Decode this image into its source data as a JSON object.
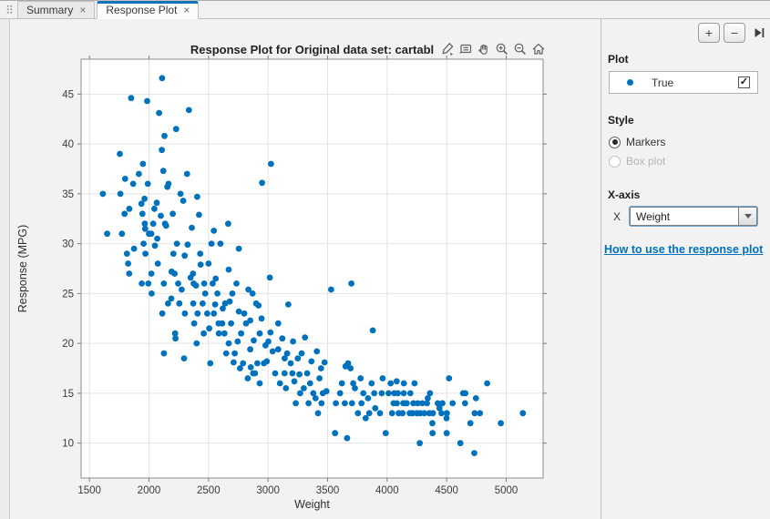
{
  "tabs": {
    "close_glyph": "×",
    "items": [
      {
        "label": "Summary",
        "active": false
      },
      {
        "label": "Response Plot",
        "active": true
      }
    ]
  },
  "toolbar": {
    "increase_label": "+",
    "decrease_label": "−",
    "collapse_label": "collapse-right-panel"
  },
  "axes_toolbar_icons": [
    "brush-icon",
    "datatip-icon",
    "pan-icon",
    "zoom-in-icon",
    "zoom-out-icon",
    "home-icon"
  ],
  "panel": {
    "plot_header": "Plot",
    "legend": {
      "label": "True",
      "checked": true,
      "marker_color": "#0072BD",
      "check_glyph": "✓"
    },
    "style_header": "Style",
    "style_options": [
      {
        "label": "Markers",
        "selected": true,
        "enabled": true
      },
      {
        "label": "Box plot",
        "selected": false,
        "enabled": false
      }
    ],
    "xaxis_header": "X-axis",
    "xaxis_field_label": "X",
    "xaxis_value": "Weight",
    "help_link": "How to use the response plot"
  },
  "colors": {
    "accent": "#0072BD",
    "marker": "#0072BD",
    "grid": "#e3e3e3",
    "axis_border": "#8c8c8c"
  },
  "chart_data": {
    "type": "scatter",
    "title": "Response Plot for Original data set: cartabl",
    "xlabel": "Weight",
    "ylabel": "Response (MPG)",
    "xlim": [
      1430,
      5310
    ],
    "ylim": [
      6.5,
      48.5
    ],
    "x_ticks": [
      1500,
      2000,
      2500,
      3000,
      3500,
      4000,
      4500,
      5000
    ],
    "y_ticks": [
      10,
      15,
      20,
      25,
      30,
      35,
      40,
      45
    ],
    "grid": true,
    "legend_position": "right-panel",
    "marker_color": "#0072BD",
    "series": [
      {
        "name": "True",
        "points": [
          [
            1613,
            35
          ],
          [
            1649,
            31
          ],
          [
            1755,
            39
          ],
          [
            1760,
            35
          ],
          [
            1773,
            31
          ],
          [
            1795,
            33
          ],
          [
            1800,
            36.5
          ],
          [
            1815,
            29
          ],
          [
            1825,
            28
          ],
          [
            1834,
            27
          ],
          [
            1835,
            33.5
          ],
          [
            1850,
            44.6
          ],
          [
            1867,
            36
          ],
          [
            1875,
            29.5
          ],
          [
            1915,
            37
          ],
          [
            1937,
            34
          ],
          [
            1940,
            26
          ],
          [
            1945,
            33
          ],
          [
            1950,
            38
          ],
          [
            1955,
            30
          ],
          [
            1963,
            34.5
          ],
          [
            1965,
            32
          ],
          [
            1968,
            31.5
          ],
          [
            1970,
            29
          ],
          [
            1985,
            44.3
          ],
          [
            1990,
            36
          ],
          [
            1995,
            26
          ],
          [
            2000,
            31
          ],
          [
            2019,
            31
          ],
          [
            2020,
            27
          ],
          [
            2022,
            25
          ],
          [
            2035,
            32
          ],
          [
            2045,
            33.5
          ],
          [
            2050,
            29.8
          ],
          [
            2065,
            34.1
          ],
          [
            2070,
            30.5
          ],
          [
            2074,
            28
          ],
          [
            2085,
            43.1
          ],
          [
            2100,
            32.8
          ],
          [
            2108,
            39.4
          ],
          [
            2110,
            46.6
          ],
          [
            2112,
            23
          ],
          [
            2120,
            37.3
          ],
          [
            2125,
            26
          ],
          [
            2126,
            19
          ],
          [
            2130,
            40.8
          ],
          [
            2135,
            32
          ],
          [
            2144,
            31.8
          ],
          [
            2155,
            35.7
          ],
          [
            2160,
            24
          ],
          [
            2164,
            36
          ],
          [
            2188,
            24.5
          ],
          [
            2190,
            27.2
          ],
          [
            2200,
            33
          ],
          [
            2205,
            29
          ],
          [
            2215,
            27
          ],
          [
            2220,
            21
          ],
          [
            2223,
            20.5
          ],
          [
            2228,
            41.5
          ],
          [
            2234,
            30
          ],
          [
            2245,
            26
          ],
          [
            2255,
            24
          ],
          [
            2265,
            35
          ],
          [
            2275,
            25.4
          ],
          [
            2288,
            34.3
          ],
          [
            2295,
            18.5
          ],
          [
            2300,
            28.8
          ],
          [
            2302,
            23
          ],
          [
            2320,
            37
          ],
          [
            2325,
            29.9
          ],
          [
            2335,
            43.4
          ],
          [
            2350,
            26.6
          ],
          [
            2360,
            31.6
          ],
          [
            2370,
            27
          ],
          [
            2372,
            24
          ],
          [
            2375,
            26
          ],
          [
            2380,
            22
          ],
          [
            2395,
            25.8
          ],
          [
            2405,
            34.7
          ],
          [
            2400,
            20
          ],
          [
            2408,
            23
          ],
          [
            2420,
            32.9
          ],
          [
            2430,
            29
          ],
          [
            2434,
            27.9
          ],
          [
            2451,
            24
          ],
          [
            2460,
            21
          ],
          [
            2464,
            26
          ],
          [
            2472,
            25
          ],
          [
            2489,
            23
          ],
          [
            2500,
            28
          ],
          [
            2506,
            21.5
          ],
          [
            2515,
            18
          ],
          [
            2525,
            30
          ],
          [
            2535,
            26
          ],
          [
            2545,
            31.3
          ],
          [
            2545,
            23
          ],
          [
            2556,
            23.9
          ],
          [
            2560,
            26.5
          ],
          [
            2575,
            25
          ],
          [
            2585,
            22
          ],
          [
            2587,
            21
          ],
          [
            2600,
            30
          ],
          [
            2615,
            22
          ],
          [
            2620,
            23.5
          ],
          [
            2634,
            21
          ],
          [
            2640,
            24
          ],
          [
            2648,
            19
          ],
          [
            2665,
            32
          ],
          [
            2670,
            20
          ],
          [
            2670,
            27.4
          ],
          [
            2678,
            24.2
          ],
          [
            2690,
            22
          ],
          [
            2700,
            25
          ],
          [
            2711,
            18.1
          ],
          [
            2720,
            19
          ],
          [
            2735,
            26
          ],
          [
            2745,
            20.2
          ],
          [
            2755,
            29.5
          ],
          [
            2755,
            23.2
          ],
          [
            2765,
            17.5
          ],
          [
            2774,
            21
          ],
          [
            2790,
            18
          ],
          [
            2800,
            23
          ],
          [
            2815,
            22
          ],
          [
            2830,
            16.5
          ],
          [
            2835,
            25.4
          ],
          [
            2850,
            19.4
          ],
          [
            2850,
            22.3
          ],
          [
            2855,
            17.6
          ],
          [
            2870,
            25
          ],
          [
            2875,
            17
          ],
          [
            2880,
            20.3
          ],
          [
            2890,
            17
          ],
          [
            2900,
            24
          ],
          [
            2910,
            18
          ],
          [
            2920,
            23.8
          ],
          [
            2930,
            16
          ],
          [
            2930,
            21
          ],
          [
            2945,
            22.5
          ],
          [
            2950,
            36.1
          ],
          [
            2965,
            18
          ],
          [
            2979,
            19.8
          ],
          [
            2990,
            18.2
          ],
          [
            3003,
            20.2
          ],
          [
            3015,
            26.6
          ],
          [
            3020,
            21.1
          ],
          [
            3025,
            38
          ],
          [
            3039,
            19.2
          ],
          [
            3060,
            17
          ],
          [
            3085,
            22
          ],
          [
            3085,
            19.4
          ],
          [
            3100,
            16
          ],
          [
            3120,
            20.5
          ],
          [
            3139,
            17
          ],
          [
            3140,
            18.5
          ],
          [
            3150,
            15.5
          ],
          [
            3160,
            19
          ],
          [
            3170,
            23.9
          ],
          [
            3190,
            18
          ],
          [
            3205,
            17
          ],
          [
            3210,
            20.2
          ],
          [
            3221,
            16.2
          ],
          [
            3233,
            14
          ],
          [
            3250,
            18.5
          ],
          [
            3264,
            16.9
          ],
          [
            3270,
            15
          ],
          [
            3282,
            19
          ],
          [
            3300,
            15.5
          ],
          [
            3310,
            20.6
          ],
          [
            3329,
            17
          ],
          [
            3340,
            14
          ],
          [
            3353,
            16
          ],
          [
            3365,
            18.2
          ],
          [
            3380,
            15
          ],
          [
            3399,
            14.5
          ],
          [
            3410,
            19.2
          ],
          [
            3420,
            13
          ],
          [
            3432,
            16.5
          ],
          [
            3445,
            17.5
          ],
          [
            3449,
            14
          ],
          [
            3460,
            15
          ],
          [
            3475,
            18.1
          ],
          [
            3490,
            15.2
          ],
          [
            3530,
            25.4
          ],
          [
            3563,
            11
          ],
          [
            3570,
            14
          ],
          [
            3605,
            15
          ],
          [
            3620,
            16
          ],
          [
            3645,
            14
          ],
          [
            3651,
            17.7
          ],
          [
            3664,
            10.5
          ],
          [
            3672,
            18
          ],
          [
            3693,
            17.5
          ],
          [
            3700,
            26
          ],
          [
            3705,
            14
          ],
          [
            3715,
            16
          ],
          [
            3730,
            15.5
          ],
          [
            3755,
            13
          ],
          [
            3777,
            16.5
          ],
          [
            3785,
            14
          ],
          [
            3800,
            15
          ],
          [
            3820,
            12.5
          ],
          [
            3840,
            14.5
          ],
          [
            3850,
            13
          ],
          [
            3870,
            16
          ],
          [
            3880,
            21.3
          ],
          [
            3892,
            15
          ],
          [
            3900,
            13.5
          ],
          [
            3940,
            13
          ],
          [
            3955,
            15
          ],
          [
            3962,
            16.5
          ],
          [
            3988,
            11
          ],
          [
            4012,
            15
          ],
          [
            4030,
            16
          ],
          [
            4042,
            13
          ],
          [
            4054,
            14
          ],
          [
            4060,
            15
          ],
          [
            4080,
            16.2
          ],
          [
            4082,
            14
          ],
          [
            4090,
            15
          ],
          [
            4097,
            13
          ],
          [
            4129,
            13
          ],
          [
            4135,
            14
          ],
          [
            4140,
            15
          ],
          [
            4141,
            16
          ],
          [
            4154,
            14
          ],
          [
            4165,
            14
          ],
          [
            4190,
            13
          ],
          [
            4195,
            15
          ],
          [
            4215,
            13
          ],
          [
            4220,
            14
          ],
          [
            4230,
            16
          ],
          [
            4250,
            13
          ],
          [
            4257,
            14
          ],
          [
            4274,
            10
          ],
          [
            4278,
            13
          ],
          [
            4295,
            14
          ],
          [
            4312,
            13
          ],
          [
            4335,
            14
          ],
          [
            4341,
            14.5
          ],
          [
            4354,
            13
          ],
          [
            4360,
            15
          ],
          [
            4380,
            12
          ],
          [
            4382,
            11
          ],
          [
            4385,
            13
          ],
          [
            4425,
            14
          ],
          [
            4440,
            13.5
          ],
          [
            4457,
            13
          ],
          [
            4464,
            14
          ],
          [
            4499,
            12.5
          ],
          [
            4500,
            11
          ],
          [
            4502,
            13
          ],
          [
            4520,
            16.5
          ],
          [
            4550,
            14
          ],
          [
            4615,
            10
          ],
          [
            4638,
            15
          ],
          [
            4654,
            14
          ],
          [
            4657,
            15
          ],
          [
            4699,
            12
          ],
          [
            4732,
            9
          ],
          [
            4735,
            13
          ],
          [
            4746,
            14.5
          ],
          [
            4780,
            13
          ],
          [
            4840,
            16
          ],
          [
            4955,
            12
          ],
          [
            5140,
            13
          ]
        ]
      }
    ]
  }
}
